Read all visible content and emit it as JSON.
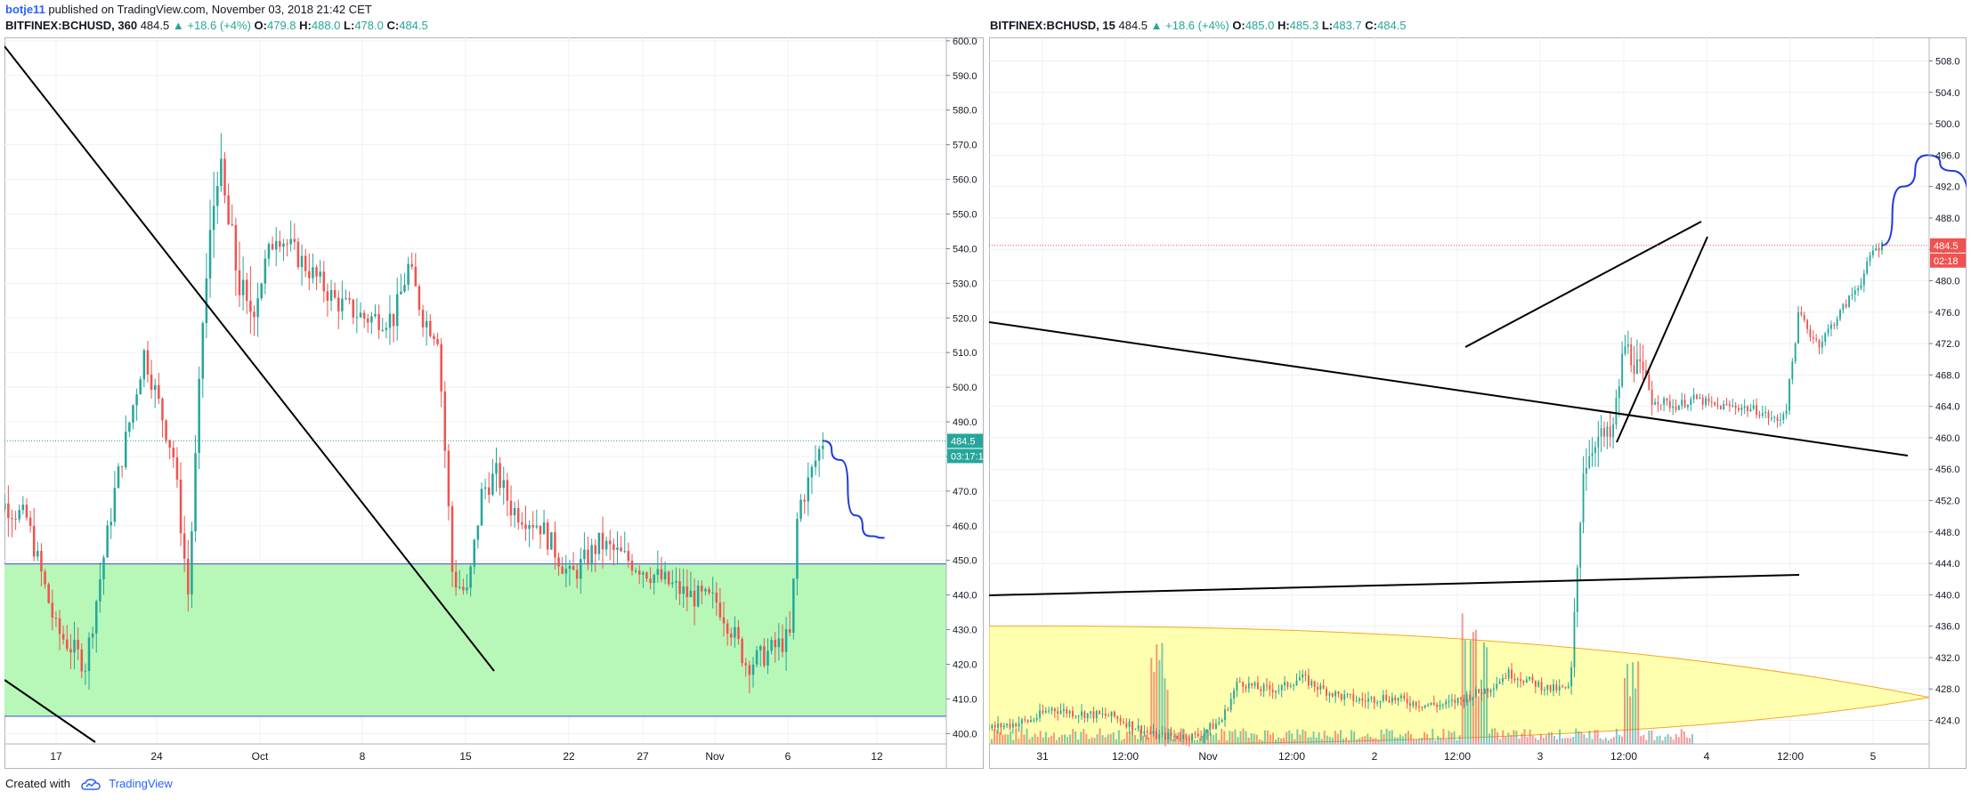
{
  "header": {
    "username": "botje11",
    "published_text": "published on TradingView.com, November 03, 2018 21:42 CET"
  },
  "footer": {
    "created_with": "Created with",
    "brand": "TradingView",
    "logo_icon": "tradingview-cloud-icon"
  },
  "colors": {
    "up": "#26a69a",
    "down": "#ef5350",
    "support_zone": "#b7f7b7",
    "support_border": "#5b6ee1",
    "volume_zone": "#ffffb0",
    "volume_border": "#f5a623",
    "projection": "#1e3adf",
    "trendline": "#000000",
    "price_tag": "#26a69a",
    "price_tag_red": "#ef5350"
  },
  "chart_data": [
    {
      "type": "candlestick",
      "symbol": "BITFINEX:BCHUSD, 360",
      "last": "484.5",
      "change": "+18.6 (+4%)",
      "ohlc": {
        "O": "479.8",
        "H": "488.0",
        "L": "478.0",
        "C": "484.5"
      },
      "ylim": [
        397,
        601
      ],
      "y_ticks": [
        "600.0",
        "590.0",
        "580.0",
        "570.0",
        "560.0",
        "550.0",
        "540.0",
        "530.0",
        "520.0",
        "510.0",
        "500.0",
        "490.0",
        "480.0",
        "470.0",
        "460.0",
        "450.0",
        "440.0",
        "430.0",
        "420.0",
        "410.0",
        "400.0"
      ],
      "x_ticks": [
        "17",
        "24",
        "Oct",
        "8",
        "15",
        "22",
        "27",
        "Nov",
        "6",
        "12"
      ],
      "price_label": "484.5",
      "countdown_label": "03:17:11",
      "support_zone": [
        405,
        449
      ],
      "trend_path": [
        [
          12,
          470
        ],
        [
          15,
          462
        ],
        [
          17,
          430
        ],
        [
          19,
          420
        ],
        [
          21,
          470
        ],
        [
          23,
          510
        ],
        [
          25,
          480
        ],
        [
          26,
          440
        ],
        [
          27,
          520
        ],
        [
          28,
          565
        ],
        [
          29,
          540
        ],
        [
          30,
          520
        ],
        [
          32,
          545
        ],
        [
          34,
          535
        ],
        [
          36,
          525
        ],
        [
          38,
          520
        ],
        [
          40,
          520
        ],
        [
          41,
          535
        ],
        [
          42,
          520
        ],
        [
          43,
          515
        ],
        [
          44,
          445
        ],
        [
          45,
          440
        ],
        [
          46,
          470
        ],
        [
          47,
          475
        ],
        [
          48,
          465
        ],
        [
          50,
          460
        ],
        [
          52,
          445
        ],
        [
          54,
          455
        ],
        [
          56,
          450
        ],
        [
          58,
          445
        ],
        [
          60,
          440
        ],
        [
          62,
          438
        ],
        [
          63,
          430
        ],
        [
          64,
          420
        ],
        [
          65,
          422
        ],
        [
          66,
          425
        ],
        [
          67,
          428
        ],
        [
          67.5,
          465
        ],
        [
          68,
          470
        ],
        [
          68.8,
          480
        ],
        [
          69.2,
          484.5
        ]
      ],
      "projection": [
        [
          69.2,
          484.5
        ],
        [
          70.4,
          479
        ],
        [
          71.4,
          463
        ],
        [
          72.4,
          457
        ],
        [
          73.4,
          456.5
        ]
      ]
    },
    {
      "type": "candlestick",
      "symbol": "BITFINEX:BCHUSD, 15",
      "last": "484.5",
      "change": "+18.6 (+4%)",
      "ohlc": {
        "O": "485.0",
        "H": "485.3",
        "L": "483.7",
        "C": "484.5"
      },
      "ylim": [
        421,
        511
      ],
      "y_ticks": [
        "508.0",
        "504.0",
        "500.0",
        "496.0",
        "492.0",
        "488.0",
        "484.0",
        "480.0",
        "476.0",
        "472.0",
        "468.0",
        "464.0",
        "460.0",
        "456.0",
        "452.0",
        "448.0",
        "444.0",
        "440.0",
        "436.0",
        "432.0",
        "428.0",
        "424.0"
      ],
      "x_ticks": [
        "31",
        "12:00",
        "Nov",
        "12:00",
        "2",
        "12:00",
        "3",
        "12:00",
        "4",
        "12:00",
        "5"
      ],
      "price_label": "484.5",
      "countdown_label": "02:18",
      "price_path": [
        [
          0,
          423
        ],
        [
          1,
          424
        ],
        [
          1.5,
          425.5
        ],
        [
          2,
          425
        ],
        [
          3,
          424.5
        ],
        [
          3.6,
          423
        ],
        [
          4,
          422
        ],
        [
          5,
          422
        ],
        [
          5.6,
          424
        ],
        [
          6,
          429
        ],
        [
          6.5,
          428
        ],
        [
          7,
          428
        ],
        [
          7.5,
          429.5
        ],
        [
          8,
          428
        ],
        [
          8.5,
          427
        ],
        [
          9,
          426.5
        ],
        [
          9.5,
          427
        ],
        [
          10,
          426.5
        ],
        [
          10.5,
          426
        ],
        [
          11,
          426
        ],
        [
          11.5,
          427
        ],
        [
          12,
          428
        ],
        [
          12.5,
          430
        ],
        [
          13,
          429
        ],
        [
          13.5,
          428
        ],
        [
          14,
          428
        ],
        [
          14.3,
          456
        ],
        [
          14.6,
          460
        ],
        [
          15,
          460
        ],
        [
          15.3,
          472
        ],
        [
          15.6,
          469
        ],
        [
          16,
          465
        ],
        [
          16.5,
          464
        ],
        [
          17,
          465
        ],
        [
          17.5,
          464
        ],
        [
          18,
          464
        ],
        [
          18.5,
          463.5
        ],
        [
          19,
          462
        ],
        [
          19.2,
          464
        ],
        [
          19.5,
          476
        ],
        [
          19.8,
          473
        ],
        [
          20,
          472
        ],
        [
          20.5,
          476
        ],
        [
          21,
          480
        ],
        [
          21.3,
          484
        ],
        [
          21.5,
          484.5
        ]
      ],
      "projection": [
        [
          21.5,
          484.5
        ],
        [
          22,
          492
        ],
        [
          22.6,
          496
        ],
        [
          23.2,
          494
        ],
        [
          24,
          484
        ],
        [
          24.6,
          474
        ],
        [
          25,
          464
        ],
        [
          25.3,
          460.5
        ]
      ],
      "volume_zone": [
        421,
        436
      ]
    }
  ]
}
